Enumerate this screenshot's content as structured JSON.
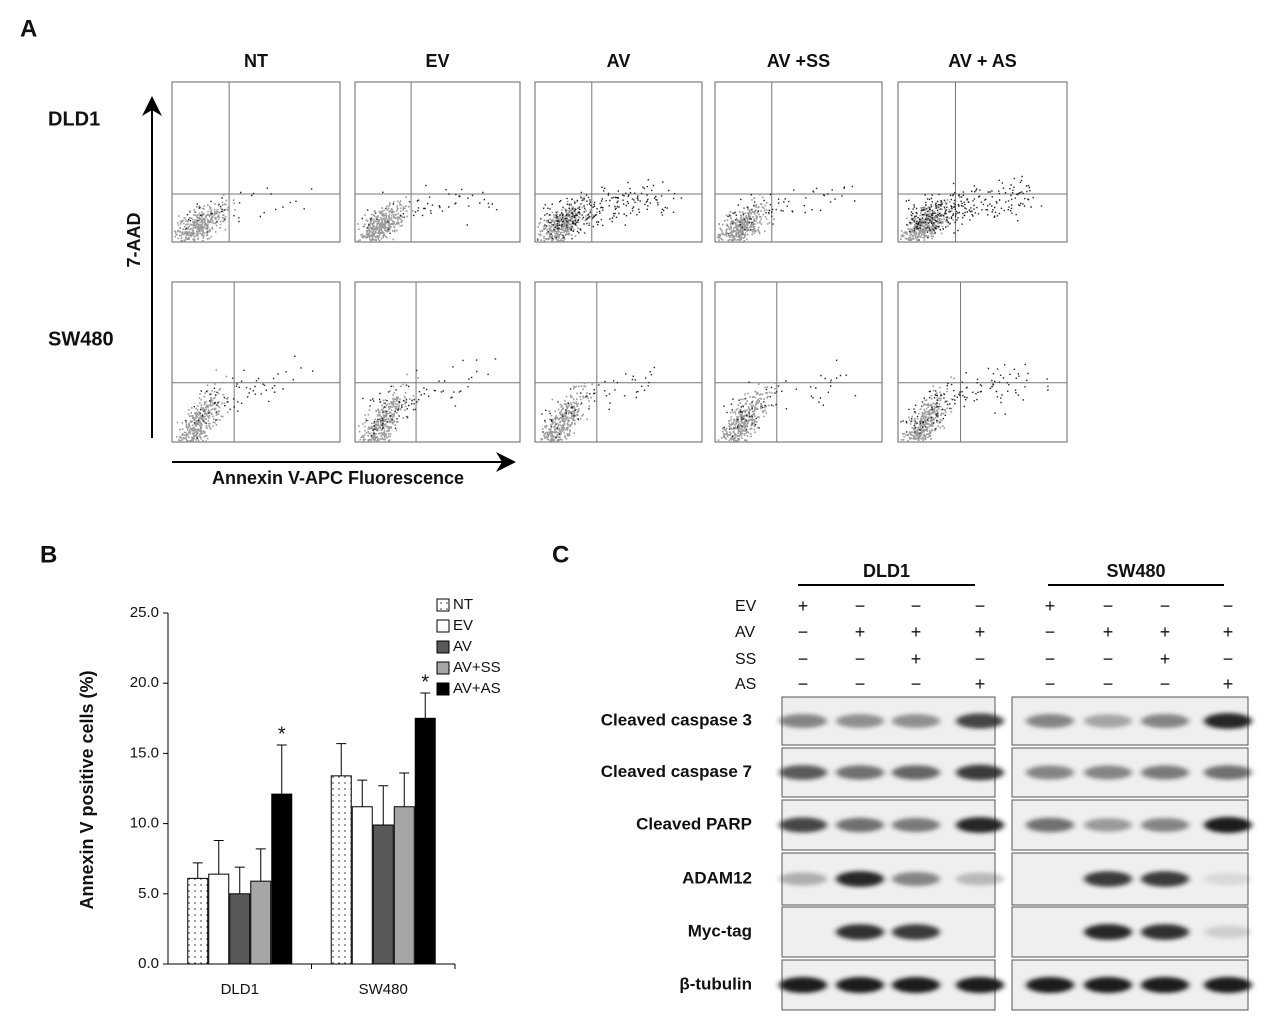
{
  "panel_a": {
    "label": "A",
    "columns": [
      "NT",
      "EV",
      "AV",
      "AV +SS",
      "AV + AS"
    ],
    "rows": [
      "DLD1",
      "SW480"
    ],
    "y_axis_label": "7-AAD",
    "x_axis_label": "Annexin V-APC Fluorescence"
  },
  "panel_b_label": "B",
  "chart_data": {
    "type": "bar",
    "y_label": "Annexin V  positive cells (%)",
    "categories": [
      "DLD1",
      "SW480"
    ],
    "series": [
      {
        "name": "NT",
        "color": "#ffffff",
        "pattern": "dots",
        "values": [
          6.1,
          13.4
        ],
        "errors": [
          1.1,
          2.3
        ]
      },
      {
        "name": "EV",
        "color": "#ffffff",
        "values": [
          6.4,
          11.2
        ],
        "errors": [
          2.4,
          1.9
        ]
      },
      {
        "name": "AV",
        "color": "#595959",
        "values": [
          5.0,
          9.9
        ],
        "errors": [
          1.9,
          2.8
        ]
      },
      {
        "name": "AV+SS",
        "color": "#a6a6a6",
        "values": [
          5.9,
          11.2
        ],
        "errors": [
          2.3,
          2.4
        ]
      },
      {
        "name": "AV+AS",
        "color": "#000000",
        "values": [
          12.1,
          17.5
        ],
        "errors": [
          3.5,
          1.8
        ],
        "annotations": [
          "*",
          "*"
        ]
      }
    ],
    "ylim": [
      0,
      25
    ],
    "yticks": [
      {
        "value": 0,
        "label": "0.0"
      },
      {
        "value": 5,
        "label": "5.0"
      },
      {
        "value": 10,
        "label": "10.0"
      },
      {
        "value": 15,
        "label": "15.0"
      },
      {
        "value": 20,
        "label": "20.0"
      },
      {
        "value": 25,
        "label": "25.0"
      }
    ],
    "legend": "top-right"
  },
  "panel_c": {
    "label": "C",
    "groups": [
      "DLD1",
      "SW480"
    ],
    "treatments": [
      {
        "label": "EV",
        "signs": [
          "+",
          "−",
          "−",
          "−",
          "+",
          "−",
          "−",
          "−"
        ]
      },
      {
        "label": "AV",
        "signs": [
          "−",
          "+",
          "+",
          "+",
          "−",
          "+",
          "+",
          "+"
        ]
      },
      {
        "label": "SS",
        "signs": [
          "−",
          "−",
          "+",
          "−",
          "−",
          "−",
          "+",
          "−"
        ]
      },
      {
        "label": "AS",
        "signs": [
          "−",
          "−",
          "−",
          "+",
          "−",
          "−",
          "−",
          "+"
        ]
      }
    ],
    "proteins": [
      "Cleaved caspase 3",
      "Cleaved caspase 7",
      "Cleaved PARP",
      "ADAM12",
      "Myc-tag",
      "β-tubulin"
    ]
  }
}
